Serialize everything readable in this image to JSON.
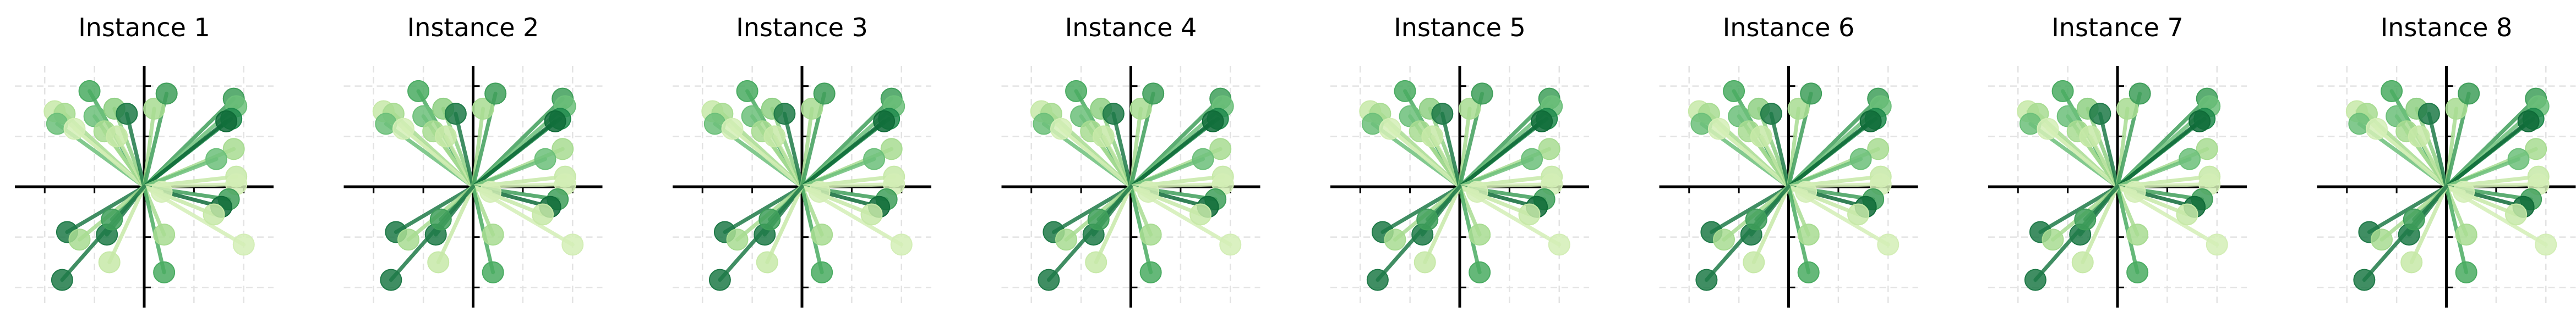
{
  "chart_data": {
    "type": "scatter",
    "description_style": "vectors from origin with circular markers, colored in a green sequential scale",
    "grid": true,
    "xlim": [
      -2.6,
      2.6
    ],
    "ylim": [
      -2.4,
      2.4
    ],
    "panels": [
      {
        "title": "Instance 1"
      },
      {
        "title": "Instance 2"
      },
      {
        "title": "Instance 3"
      },
      {
        "title": "Instance 4"
      },
      {
        "title": "Instance 5"
      },
      {
        "title": "Instance 6"
      },
      {
        "title": "Instance 7"
      },
      {
        "title": "Instance 8"
      }
    ],
    "vectors": [
      {
        "x": -1.8,
        "y": 1.5,
        "color": "#c7e9a8"
      },
      {
        "x": -1.6,
        "y": 1.45,
        "color": "#a8dc92"
      },
      {
        "x": -1.75,
        "y": 1.25,
        "color": "#6cc07a"
      },
      {
        "x": -1.4,
        "y": 1.15,
        "color": "#d3eeb6"
      },
      {
        "x": -1.1,
        "y": 1.9,
        "color": "#4aac62"
      },
      {
        "x": -1.0,
        "y": 1.4,
        "color": "#6cc07a"
      },
      {
        "x": -0.8,
        "y": 1.1,
        "color": "#a8dc92"
      },
      {
        "x": -0.55,
        "y": 1.0,
        "color": "#c7e9a8"
      },
      {
        "x": -0.6,
        "y": 1.55,
        "color": "#8fd084"
      },
      {
        "x": -0.35,
        "y": 1.45,
        "color": "#1f7a48"
      },
      {
        "x": 0.2,
        "y": 1.55,
        "color": "#a8dc92"
      },
      {
        "x": 0.45,
        "y": 1.85,
        "color": "#3f9f5a"
      },
      {
        "x": 1.8,
        "y": 1.75,
        "color": "#3f9f5a"
      },
      {
        "x": 1.85,
        "y": 1.6,
        "color": "#6cc07a"
      },
      {
        "x": 1.75,
        "y": 1.35,
        "color": "#1e8a4c"
      },
      {
        "x": 1.65,
        "y": 1.3,
        "color": "#0f6b38"
      },
      {
        "x": 1.8,
        "y": 0.75,
        "color": "#a8dc92"
      },
      {
        "x": 1.45,
        "y": 0.55,
        "color": "#6cc07a"
      },
      {
        "x": 1.85,
        "y": 0.2,
        "color": "#c7e9a8"
      },
      {
        "x": 1.85,
        "y": 0.05,
        "color": "#d3eeb6"
      },
      {
        "x": 1.7,
        "y": -0.25,
        "color": "#3f9f5a"
      },
      {
        "x": 1.55,
        "y": -0.4,
        "color": "#0f6b38"
      },
      {
        "x": 2.0,
        "y": -1.15,
        "color": "#d3eeb6"
      },
      {
        "x": 1.4,
        "y": -0.55,
        "color": "#c7e9a8"
      },
      {
        "x": 0.35,
        "y": -0.1,
        "color": "#d3eeb6"
      },
      {
        "x": 0.4,
        "y": -0.95,
        "color": "#a8dc92"
      },
      {
        "x": 0.4,
        "y": -1.7,
        "color": "#4aac62"
      },
      {
        "x": -0.75,
        "y": -0.95,
        "color": "#1f7a48"
      },
      {
        "x": -0.65,
        "y": -0.65,
        "color": "#3f9f5a"
      },
      {
        "x": -1.55,
        "y": -0.9,
        "color": "#1f7a48"
      },
      {
        "x": -1.3,
        "y": -1.05,
        "color": "#a8dc92"
      },
      {
        "x": -0.7,
        "y": -1.5,
        "color": "#c7e9a8"
      },
      {
        "x": -1.65,
        "y": -1.85,
        "color": "#1f7a48"
      }
    ]
  }
}
